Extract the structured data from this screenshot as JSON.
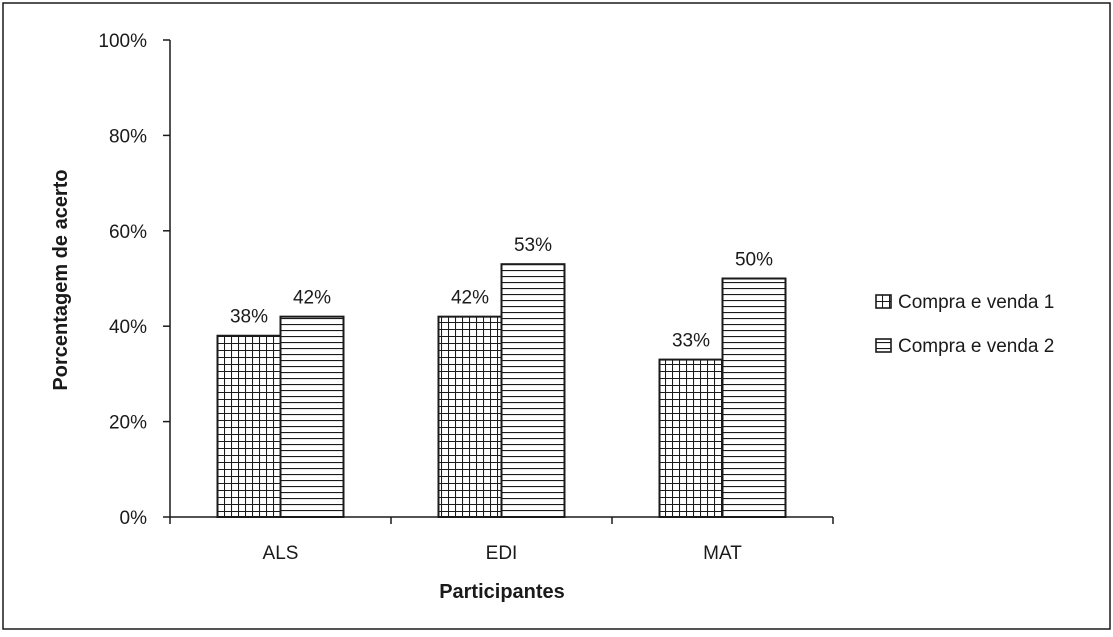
{
  "chart_data": {
    "type": "bar",
    "categories": [
      "ALS",
      "EDI",
      "MAT"
    ],
    "series": [
      {
        "name": "Compra e venda 1",
        "pattern": "grid",
        "values": [
          38,
          42,
          33
        ],
        "labels": [
          "38%",
          "42%",
          "33%"
        ]
      },
      {
        "name": "Compra e venda 2",
        "pattern": "horizontal-lines",
        "values": [
          42,
          53,
          50
        ],
        "labels": [
          "42%",
          "53%",
          "50%"
        ]
      }
    ],
    "xlabel": "Participantes",
    "ylabel": "Porcentagem de acerto",
    "ylim": [
      0,
      100
    ],
    "yticks": [
      "0%",
      "20%",
      "40%",
      "60%",
      "80%",
      "100%"
    ],
    "grid": false,
    "legend_position": "right",
    "colors": {
      "bar_fill": "#ffffff",
      "pattern": "#1a1a1a",
      "axis": "#1a1a1a",
      "frame": "#1a1a1a"
    }
  }
}
